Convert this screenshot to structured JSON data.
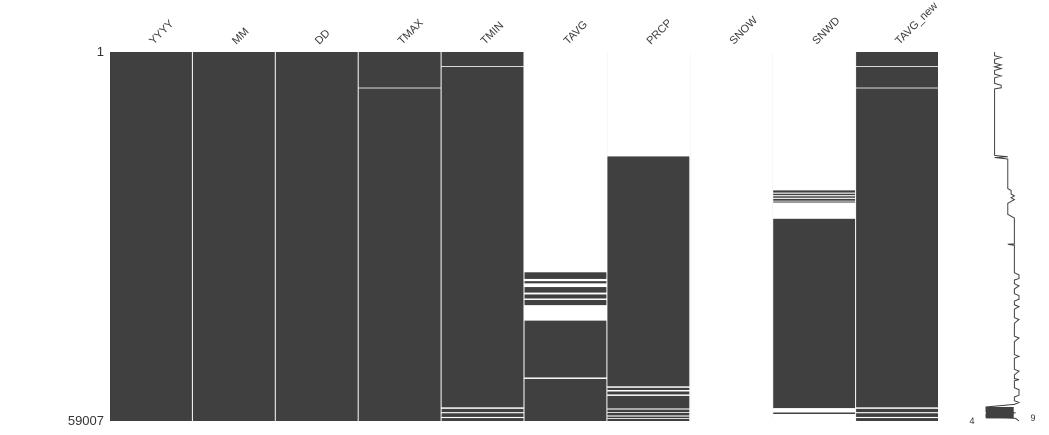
{
  "chart_data": {
    "type": "heatmap",
    "subtype": "missingness-matrix",
    "title": "",
    "total_rows": 59007,
    "row_axis": {
      "top_label": "1",
      "bottom_label": "59007",
      "range": [
        1,
        59007
      ]
    },
    "colors": {
      "present": "#404040",
      "missing": "#ffffff",
      "separator": "#ffffff"
    },
    "columns": [
      {
        "name": "YYYY",
        "gaps": []
      },
      {
        "name": "MM",
        "gaps": []
      },
      {
        "name": "DD",
        "gaps": []
      },
      {
        "name": "TMAX",
        "gaps": [
          [
            0.0965,
            0.0985
          ]
        ]
      },
      {
        "name": "TMIN",
        "gaps": [
          [
            0.0385,
            0.0405
          ],
          [
            0.963,
            0.967
          ],
          [
            0.976,
            0.979
          ],
          [
            0.989,
            0.992
          ]
        ]
      },
      {
        "name": "TAVG",
        "gaps": [
          [
            0.0,
            0.597
          ],
          [
            0.615,
            0.621
          ],
          [
            0.627,
            0.637
          ],
          [
            0.652,
            0.657
          ],
          [
            0.668,
            0.672
          ],
          [
            0.686,
            0.728
          ],
          [
            0.882,
            0.886
          ]
        ]
      },
      {
        "name": "PRCP",
        "gaps": [
          [
            0.0,
            0.283
          ],
          [
            0.906,
            0.91
          ],
          [
            0.916,
            0.92
          ],
          [
            0.928,
            0.932
          ],
          [
            0.966,
            0.969
          ],
          [
            0.976,
            0.978
          ],
          [
            0.985,
            0.988
          ],
          [
            0.992,
            0.994
          ]
        ]
      },
      {
        "name": "SNOW",
        "gaps": [
          [
            0.0,
            1.0
          ]
        ]
      },
      {
        "name": "SNWD",
        "gaps": [
          [
            0.0,
            0.375
          ],
          [
            0.381,
            0.384
          ],
          [
            0.388,
            0.391
          ],
          [
            0.395,
            0.398
          ],
          [
            0.403,
            0.405
          ],
          [
            0.408,
            0.452
          ],
          [
            0.965,
            0.977
          ],
          [
            0.981,
            1.0
          ]
        ]
      },
      {
        "name": "TAVG_new",
        "gaps": [
          [
            0.0385,
            0.0405
          ],
          [
            0.0965,
            0.0985
          ],
          [
            0.963,
            0.967
          ],
          [
            0.976,
            0.979
          ],
          [
            0.989,
            0.992
          ]
        ]
      }
    ],
    "sparkline": {
      "min_label": "4",
      "max_label": "9",
      "x_range": [
        4,
        9
      ],
      "points": [
        [
          0.0,
          5.3
        ],
        [
          0.01,
          5.3
        ],
        [
          0.015,
          6.3
        ],
        [
          0.02,
          5.3
        ],
        [
          0.03,
          5.3
        ],
        [
          0.035,
          6.3
        ],
        [
          0.04,
          5.3
        ],
        [
          0.045,
          6.3
        ],
        [
          0.05,
          5.3
        ],
        [
          0.06,
          5.3
        ],
        [
          0.065,
          6.3
        ],
        [
          0.07,
          5.3
        ],
        [
          0.085,
          5.3
        ],
        [
          0.09,
          6.3
        ],
        [
          0.097,
          6.3
        ],
        [
          0.1,
          5.3
        ],
        [
          0.28,
          5.3
        ],
        [
          0.282,
          6.3
        ],
        [
          0.284,
          7.3
        ],
        [
          0.286,
          5.3
        ],
        [
          0.288,
          6.3
        ],
        [
          0.29,
          7.3
        ],
        [
          0.37,
          7.3
        ],
        [
          0.375,
          7.8
        ],
        [
          0.385,
          7.8
        ],
        [
          0.39,
          8.3
        ],
        [
          0.395,
          7.8
        ],
        [
          0.4,
          8.3
        ],
        [
          0.405,
          7.8
        ],
        [
          0.41,
          7.3
        ],
        [
          0.44,
          7.3
        ],
        [
          0.45,
          8.3
        ],
        [
          0.455,
          8.3
        ],
        [
          0.52,
          8.3
        ],
        [
          0.521,
          7.3
        ],
        [
          0.524,
          8.3
        ],
        [
          0.598,
          8.3
        ],
        [
          0.604,
          9.0
        ],
        [
          0.614,
          9.0
        ],
        [
          0.618,
          8.3
        ],
        [
          0.628,
          8.3
        ],
        [
          0.634,
          9.0
        ],
        [
          0.642,
          8.3
        ],
        [
          0.655,
          8.3
        ],
        [
          0.66,
          9.0
        ],
        [
          0.67,
          9.0
        ],
        [
          0.675,
          8.3
        ],
        [
          0.685,
          8.3
        ],
        [
          0.69,
          9.0
        ],
        [
          0.697,
          8.3
        ],
        [
          0.72,
          8.3
        ],
        [
          0.725,
          9.0
        ],
        [
          0.735,
          8.3
        ],
        [
          0.77,
          8.3
        ],
        [
          0.775,
          9.0
        ],
        [
          0.785,
          8.3
        ],
        [
          0.82,
          8.3
        ],
        [
          0.825,
          9.0
        ],
        [
          0.83,
          8.3
        ],
        [
          0.86,
          8.3
        ],
        [
          0.865,
          9.0
        ],
        [
          0.875,
          8.3
        ],
        [
          0.885,
          8.3
        ],
        [
          0.888,
          9.0
        ],
        [
          0.891,
          8.3
        ],
        [
          0.91,
          8.3
        ],
        [
          0.915,
          9.0
        ],
        [
          0.93,
          9.0
        ],
        [
          0.935,
          8.3
        ],
        [
          0.945,
          8.3
        ],
        [
          0.95,
          9.0
        ],
        [
          0.955,
          8.3
        ],
        [
          0.962,
          4.0
        ],
        [
          0.975,
          4.0
        ],
        [
          0.978,
          8.5
        ],
        [
          0.981,
          4.0
        ],
        [
          0.99,
          4.0
        ],
        [
          0.993,
          8.5
        ],
        [
          1.0,
          9.0
        ]
      ]
    }
  }
}
